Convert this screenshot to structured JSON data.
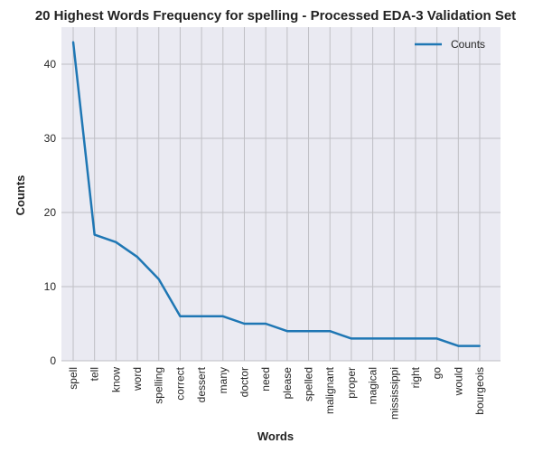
{
  "chart_data": {
    "type": "line",
    "title": "20 Highest Words Frequency for spelling - Processed EDA-3 Validation Set",
    "xlabel": "Words",
    "ylabel": "Counts",
    "categories": [
      "spell",
      "tell",
      "know",
      "word",
      "spelling",
      "correct",
      "dessert",
      "many",
      "doctor",
      "need",
      "please",
      "spelled",
      "malignant",
      "proper",
      "magical",
      "mississippi",
      "right",
      "go",
      "would",
      "bourgeois"
    ],
    "series": [
      {
        "name": "Counts",
        "values": [
          43,
          17,
          16,
          14,
          11,
          6,
          6,
          6,
          5,
          5,
          4,
          4,
          4,
          3,
          3,
          3,
          3,
          3,
          2,
          2
        ],
        "color": "#1f77b4"
      }
    ],
    "ylim": [
      0,
      45
    ],
    "yticks": [
      0,
      10,
      20,
      30,
      40
    ],
    "grid": true,
    "legend_position": "top-right",
    "background_color": "#eaeaf2",
    "grid_color": "#bfbfc4"
  }
}
